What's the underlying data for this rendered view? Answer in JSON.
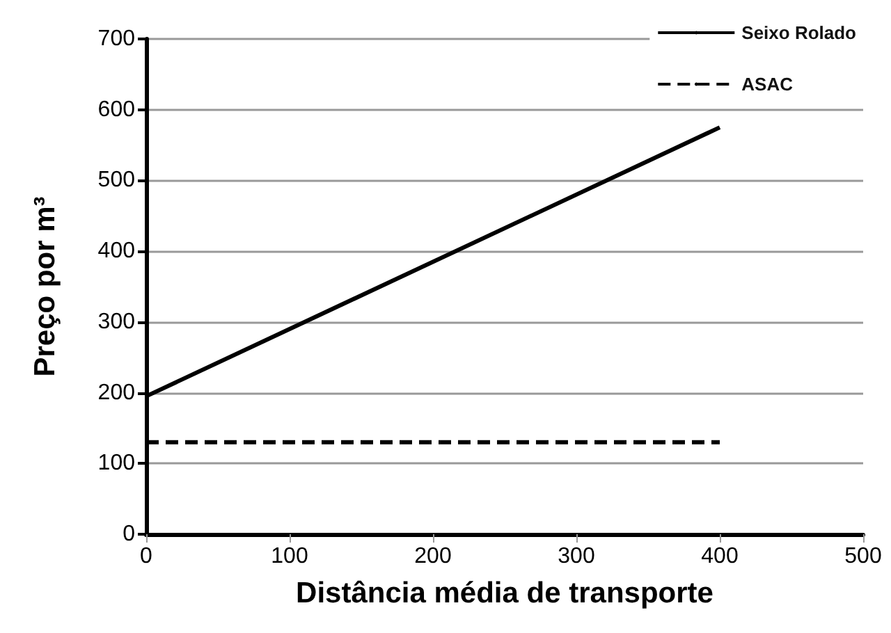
{
  "chart_data": {
    "type": "line",
    "xlabel": "Distância média de transporte",
    "ylabel": "Preço por m³",
    "xlim": [
      0,
      500
    ],
    "xticks": [
      0,
      100,
      200,
      300,
      400,
      500
    ],
    "ylim": [
      0,
      700
    ],
    "yticks": [
      0,
      100,
      200,
      300,
      400,
      500,
      600,
      700
    ],
    "grid": "y",
    "legend": "top right",
    "marker": "none",
    "x": [
      0,
      400
    ],
    "series": [
      {
        "name": "Seixo Rolado",
        "color": "#000000",
        "values": [
          195,
          575
        ],
        "line_style": "solid"
      },
      {
        "name": "ASAC",
        "color": "#000000",
        "values": [
          130,
          130
        ],
        "line_style": "dashed"
      }
    ]
  }
}
